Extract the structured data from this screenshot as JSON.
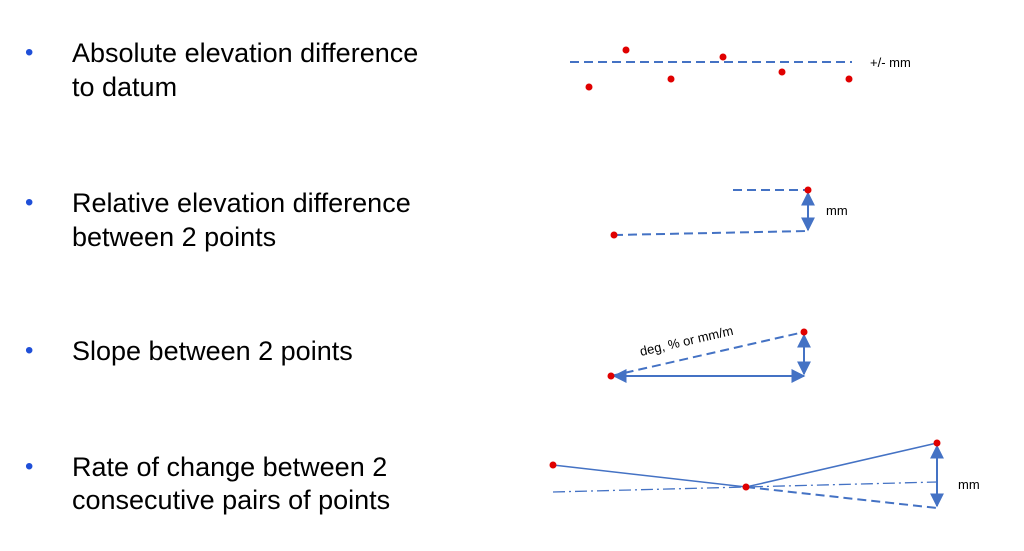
{
  "items": [
    {
      "lines": [
        "Absolute elevation difference",
        "to datum"
      ],
      "diagram_label": "+/- mm"
    },
    {
      "lines": [
        "Relative elevation difference",
        "between 2 points"
      ],
      "diagram_label": "mm"
    },
    {
      "lines": [
        "Slope between 2 points"
      ],
      "diagram_label": "deg, %  or  mm/m"
    },
    {
      "lines": [
        "Rate of change between 2",
        "consecutive pairs of points"
      ],
      "diagram_label": "mm"
    }
  ]
}
